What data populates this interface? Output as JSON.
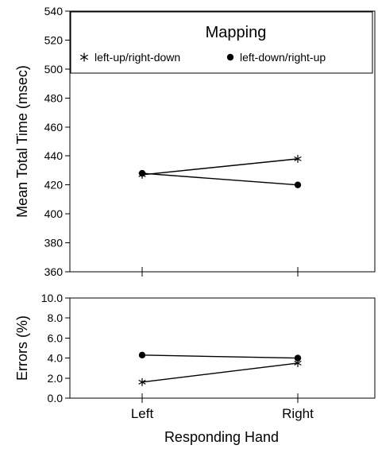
{
  "chart_data": [
    {
      "type": "line",
      "categories": [
        "Left",
        "Right"
      ],
      "ylabel": "Mean Total Time (msec)",
      "ylim": [
        360,
        540
      ],
      "yticks": [
        360,
        380,
        400,
        420,
        440,
        460,
        480,
        500,
        520,
        540
      ],
      "series": [
        {
          "name": "left-up/right-down",
          "marker": "asterisk",
          "values": [
            427,
            438
          ]
        },
        {
          "name": "left-down/right-up",
          "marker": "dot",
          "values": [
            428,
            420
          ]
        }
      ],
      "legend": {
        "title": "Mapping",
        "placement": "top"
      },
      "grid": false
    },
    {
      "type": "line",
      "categories": [
        "Left",
        "Right"
      ],
      "xlabel": "Responding Hand",
      "ylabel": "Errors (%)",
      "ylim": [
        0,
        10
      ],
      "yticks": [
        "0.0",
        "2.0",
        "4.0",
        "6.0",
        "8.0",
        "10.0"
      ],
      "series": [
        {
          "name": "left-up/right-down",
          "marker": "asterisk",
          "values": [
            1.6,
            3.5
          ]
        },
        {
          "name": "left-down/right-up",
          "marker": "dot",
          "values": [
            4.3,
            4.0
          ]
        }
      ],
      "grid": false
    }
  ]
}
